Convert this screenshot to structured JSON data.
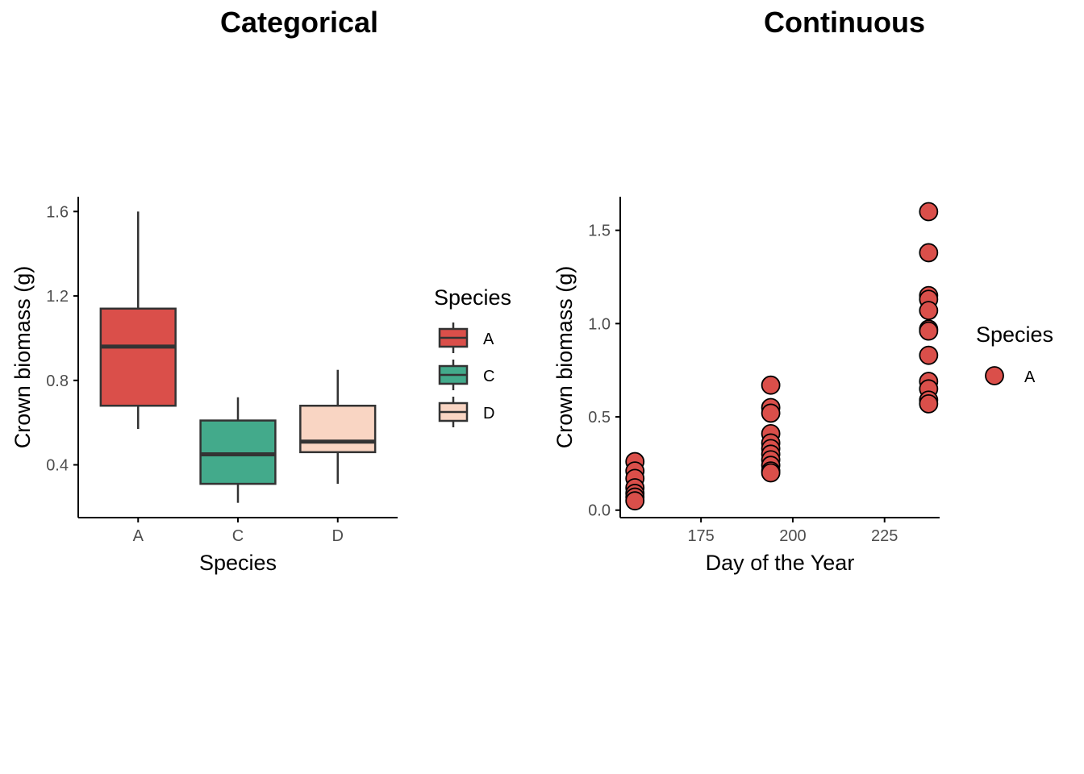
{
  "chart_data": [
    {
      "type": "box",
      "title": "Categorical",
      "xlabel": "Species",
      "ylabel": "Crown biomass (g)",
      "categories": [
        "A",
        "C",
        "D"
      ],
      "ylim": [
        0.15,
        1.67
      ],
      "yticks": [
        0.4,
        0.8,
        1.2,
        1.6
      ],
      "ytick_labels": [
        "0.4",
        "0.8",
        "1.2",
        "1.6"
      ],
      "grid": false,
      "legend": {
        "title": "Species",
        "position": "right",
        "entries": [
          "A",
          "C",
          "D"
        ]
      },
      "boxes": [
        {
          "category": "A",
          "whisker_low": 0.57,
          "q1": 0.68,
          "median": 0.96,
          "q3": 1.14,
          "whisker_high": 1.6,
          "color": "#DA4F4A"
        },
        {
          "category": "C",
          "whisker_low": 0.22,
          "q1": 0.31,
          "median": 0.45,
          "q3": 0.61,
          "whisker_high": 0.72,
          "color": "#43AA8B"
        },
        {
          "category": "D",
          "whisker_low": 0.31,
          "q1": 0.46,
          "median": 0.51,
          "q3": 0.68,
          "whisker_high": 0.85,
          "color": "#F9D5C3"
        }
      ]
    },
    {
      "type": "scatter",
      "title": "Continuous",
      "xlabel": "Day of the Year",
      "ylabel": "Crown biomass (g)",
      "xlim": [
        153,
        240
      ],
      "ylim": [
        -0.04,
        1.68
      ],
      "xticks": [
        175,
        200,
        225
      ],
      "xtick_labels": [
        "175",
        "200",
        "225"
      ],
      "yticks": [
        0.0,
        0.5,
        1.0,
        1.5
      ],
      "ytick_labels": [
        "0.0",
        "0.5",
        "1.0",
        "1.5"
      ],
      "grid": false,
      "legend": {
        "title": "Species",
        "position": "right",
        "entries": [
          "A"
        ]
      },
      "series": [
        {
          "name": "A",
          "color": "#DA4F4A",
          "points": [
            [
              157,
              0.26
            ],
            [
              157,
              0.21
            ],
            [
              157,
              0.17
            ],
            [
              157,
              0.12
            ],
            [
              157,
              0.09
            ],
            [
              157,
              0.07
            ],
            [
              157,
              0.05
            ],
            [
              194,
              0.67
            ],
            [
              194,
              0.55
            ],
            [
              194,
              0.52
            ],
            [
              194,
              0.41
            ],
            [
              194,
              0.36
            ],
            [
              194,
              0.33
            ],
            [
              194,
              0.3
            ],
            [
              194,
              0.27
            ],
            [
              194,
              0.24
            ],
            [
              194,
              0.21
            ],
            [
              194,
              0.2
            ],
            [
              237,
              1.6
            ],
            [
              237,
              1.38
            ],
            [
              237,
              1.15
            ],
            [
              237,
              1.13
            ],
            [
              237,
              1.07
            ],
            [
              237,
              0.97
            ],
            [
              237,
              0.96
            ],
            [
              237,
              0.83
            ],
            [
              237,
              0.69
            ],
            [
              237,
              0.65
            ],
            [
              237,
              0.59
            ],
            [
              237,
              0.57
            ]
          ]
        }
      ]
    }
  ]
}
